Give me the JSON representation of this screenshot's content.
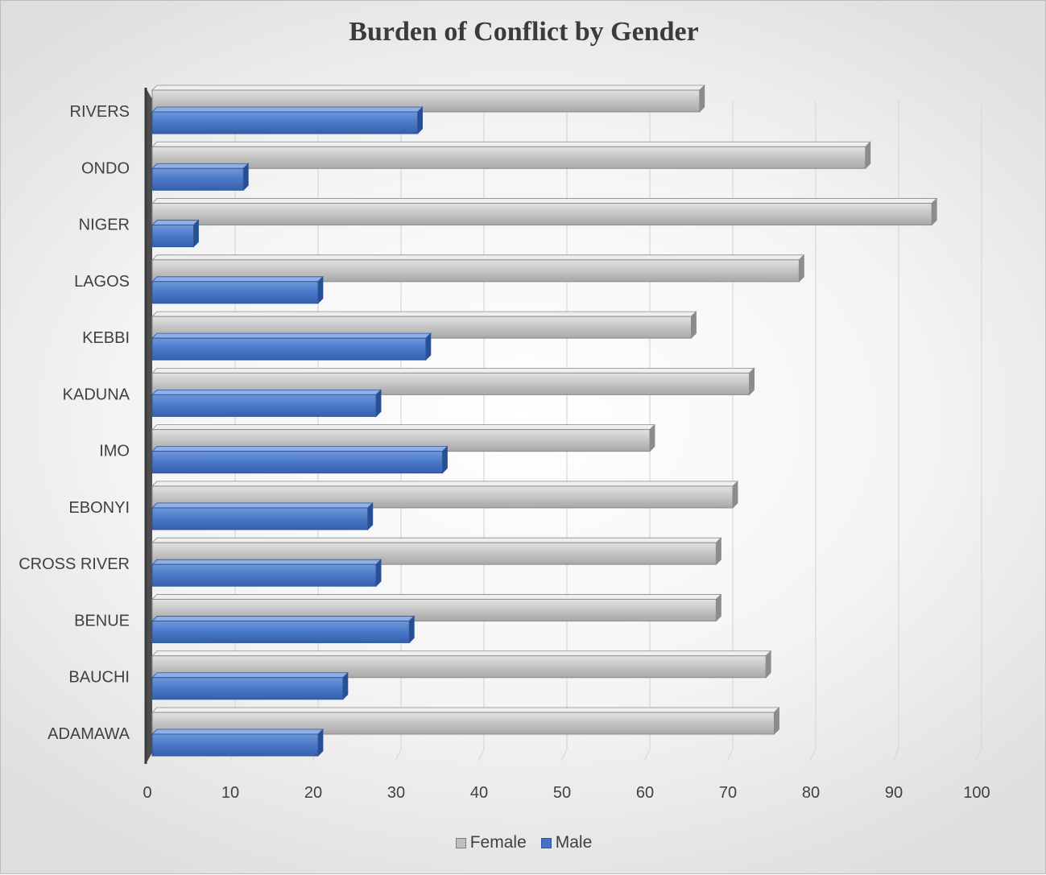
{
  "chart_data": {
    "type": "bar",
    "orientation": "horizontal",
    "title": "Burden of Conflict by Gender",
    "categories": [
      "ADAMAWA",
      "BAUCHI",
      "BENUE",
      "CROSS RIVER",
      "EBONYI",
      "IMO",
      "KADUNA",
      "KEBBI",
      "LAGOS",
      "NIGER",
      "ONDO",
      "RIVERS"
    ],
    "series": [
      {
        "name": "Female",
        "values": [
          75,
          74,
          68,
          68,
          70,
          60,
          72,
          65,
          78,
          94,
          86,
          66
        ],
        "color": "#bfbfbf"
      },
      {
        "name": "Male",
        "values": [
          20,
          23,
          31,
          27,
          26,
          35,
          27,
          33,
          20,
          5,
          11,
          32
        ],
        "color": "#4472c4"
      }
    ],
    "xlim": [
      0,
      100
    ],
    "xticks": [
      0,
      10,
      20,
      30,
      40,
      50,
      60,
      70,
      80,
      90,
      100
    ],
    "grid": true,
    "legend": "bottom"
  }
}
